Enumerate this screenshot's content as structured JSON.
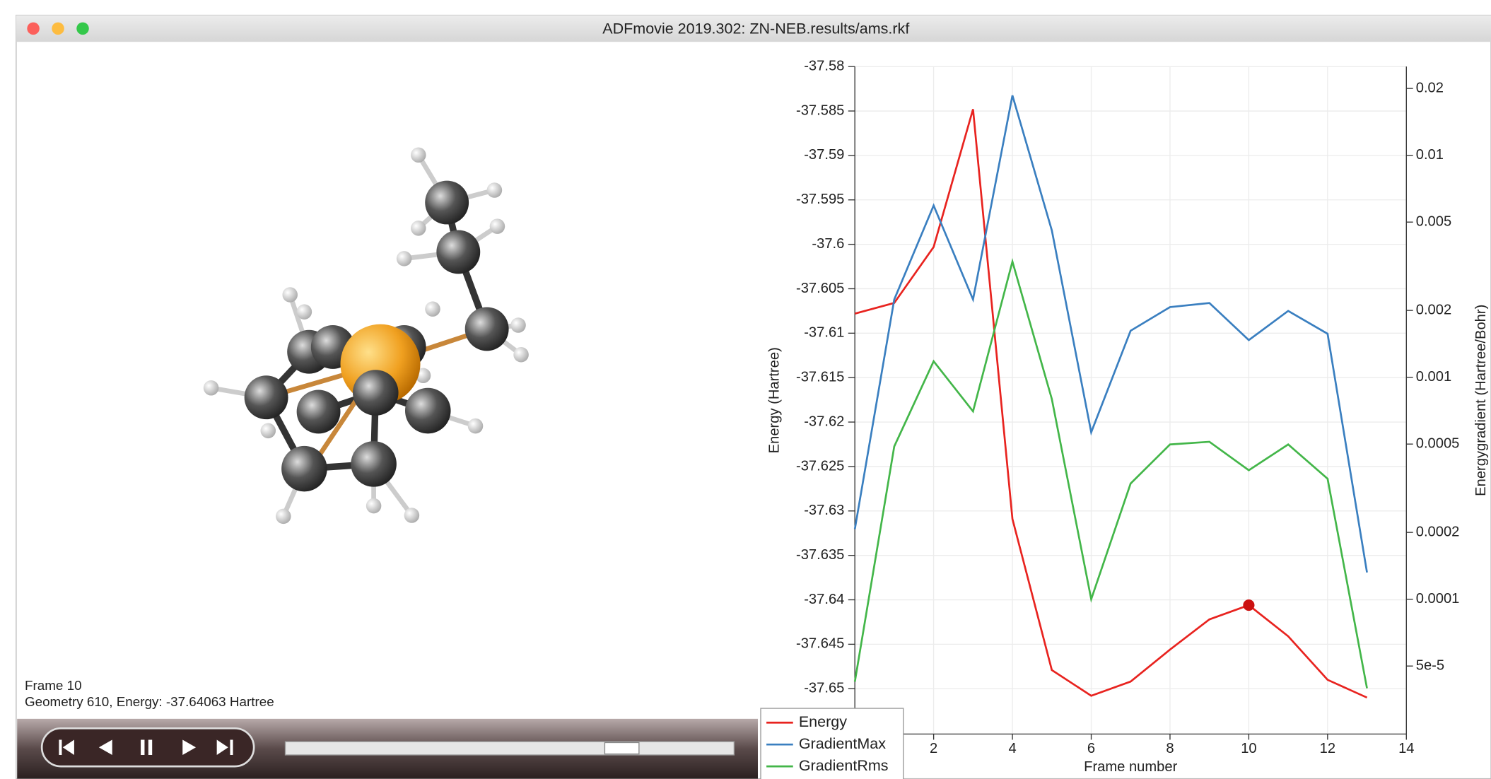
{
  "window": {
    "title": "ADFmovie 2019.302: ZN-NEB.results/ams.rkf"
  },
  "viewer": {
    "frame": "Frame 10",
    "info": "Geometry 610, Energy: -37.64063 Hartree"
  },
  "chart_data": {
    "type": "line",
    "xlabel": "Frame number",
    "ylabel": "Energy (Hartree)",
    "y2label": "Energygradient (Hartree/Bohr)",
    "x": [
      0,
      1,
      2,
      3,
      4,
      5,
      6,
      7,
      8,
      9,
      10,
      11,
      12,
      13
    ],
    "xlim": [
      0,
      14
    ],
    "xticks": [
      2,
      4,
      6,
      8,
      10,
      12,
      14
    ],
    "ylim": [
      -37.6551,
      -37.58
    ],
    "yticks": [
      -37.58,
      -37.585,
      -37.59,
      -37.595,
      -37.6,
      -37.605,
      -37.61,
      -37.615,
      -37.62,
      -37.625,
      -37.63,
      -37.635,
      -37.64,
      -37.645,
      -37.65
    ],
    "y2lim": [
      2.47e-05,
      0.0251
    ],
    "y2scale": "log",
    "y2ticks": [
      0.02,
      0.01,
      0.005,
      0.002,
      0.001,
      0.0005,
      0.0002,
      0.0001,
      {
        "value": 5e-05,
        "label": "5e-5"
      }
    ],
    "grid": true,
    "legend": "bottom-left",
    "highlight_index": 10,
    "series": [
      {
        "name": "Energy",
        "color": "#e8231f",
        "values": [
          -37.6078,
          -37.6066,
          -37.6003,
          -37.5848,
          -37.6309,
          -37.6479,
          -37.6508,
          -37.6492,
          -37.6456,
          -37.6422,
          -37.6406,
          -37.6441,
          -37.649,
          -37.651
        ]
      },
      {
        "name": "GradientMax",
        "color": "#3a7fc0",
        "axis": "y2",
        "values": [
          0.000207,
          0.00224,
          0.00594,
          0.00224,
          0.0186,
          0.00459,
          0.000565,
          0.00162,
          0.00207,
          0.00216,
          0.00147,
          0.00199,
          0.00157,
          0.000132
        ]
      },
      {
        "name": "GradientRms",
        "color": "#43b649",
        "axis": "y2",
        "values": [
          4.25e-05,
          0.000488,
          0.00118,
          0.000702,
          0.00332,
          0.000798,
          0.0001,
          0.000332,
          0.000498,
          0.000512,
          0.000381,
          0.000498,
          0.000349,
          3.97e-05
        ]
      }
    ]
  }
}
